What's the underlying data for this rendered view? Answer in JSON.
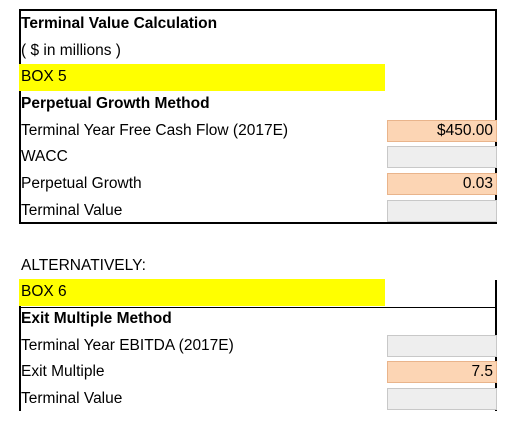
{
  "box5": {
    "title": "Terminal Value Calculation",
    "units": "( $ in millions )",
    "box_label": "BOX 5",
    "section_title": "Perpetual Growth Method",
    "rows": [
      {
        "label": "Terminal Year Free Cash Flow (2017E)",
        "value": "$450.00",
        "style": "input"
      },
      {
        "label": "WACC",
        "value": "",
        "style": "calc"
      },
      {
        "label": "Perpetual Growth",
        "value": "0.03",
        "style": "input"
      },
      {
        "label": "Terminal Value",
        "value": "",
        "style": "calc"
      }
    ]
  },
  "alternatively": "ALTERNATIVELY:",
  "box6": {
    "box_label": "BOX 6",
    "section_title": "Exit Multiple Method",
    "rows": [
      {
        "label": "Terminal Year EBITDA (2017E)",
        "value": "",
        "style": "calc"
      },
      {
        "label": "Exit Multiple",
        "value": "7.5",
        "style": "input"
      },
      {
        "label": "Terminal Value",
        "value": "",
        "style": "calc"
      }
    ]
  },
  "colors": {
    "highlight": "#ffff00",
    "input_cell": "#fcd5b4",
    "calc_cell": "#eeeeee"
  }
}
